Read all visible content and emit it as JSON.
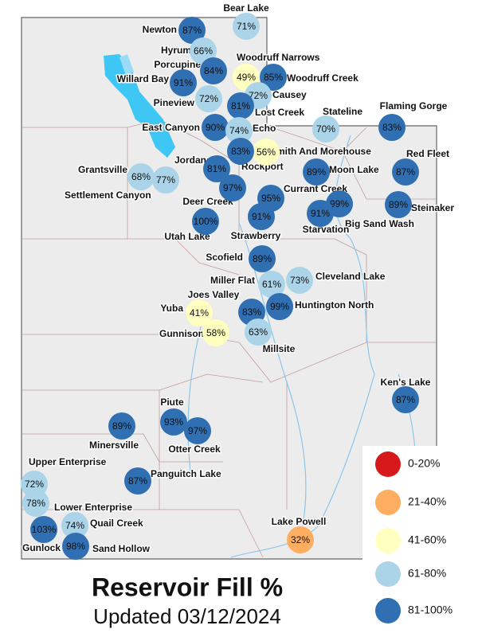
{
  "title": "Reservoir Fill %",
  "subtitle": "Updated 03/12/2024",
  "legend": [
    {
      "label": "0-20%",
      "range": [
        0,
        20
      ],
      "color": "#d7191c"
    },
    {
      "label": "21-40%",
      "range": [
        21,
        40
      ],
      "color": "#fdae61"
    },
    {
      "label": "41-60%",
      "range": [
        41,
        60
      ],
      "color": "#ffffbf"
    },
    {
      "label": "61-80%",
      "range": [
        61,
        80
      ],
      "color": "#abd4e8"
    },
    {
      "label": "81-100%",
      "range": [
        81,
        100
      ],
      "color": "#2f6fb2"
    }
  ],
  "reservoirs": [
    {
      "name": "Newton",
      "value": 87,
      "label": "87%"
    },
    {
      "name": "Bear Lake",
      "value": 71,
      "label": "71%"
    },
    {
      "name": "Hyrum",
      "value": 66,
      "label": "66%"
    },
    {
      "name": "Porcupine",
      "value": 84,
      "label": "84%"
    },
    {
      "name": "Woodruff Narrows",
      "value": 49,
      "label": "49%"
    },
    {
      "name": "Woodruff Creek",
      "value": 85,
      "label": "85%"
    },
    {
      "name": "Willard Bay",
      "value": 91,
      "label": "91%"
    },
    {
      "name": "Causey",
      "value": 72,
      "label": "72%"
    },
    {
      "name": "Pineview",
      "value": 72,
      "label": "72%"
    },
    {
      "name": "Lost Creek",
      "value": 81,
      "label": "81%"
    },
    {
      "name": "Stateline",
      "value": 70,
      "label": "70%"
    },
    {
      "name": "Flaming Gorge",
      "value": 83,
      "label": "83%"
    },
    {
      "name": "East Canyon",
      "value": 90,
      "label": "90%"
    },
    {
      "name": "Echo",
      "value": 74,
      "label": "74%"
    },
    {
      "name": "Smith And Morehouse",
      "value": 56,
      "label": "56%"
    },
    {
      "name": "Rockport",
      "value": 83,
      "label": "83%"
    },
    {
      "name": "Red Fleet",
      "value": 87,
      "label": "87%"
    },
    {
      "name": "Jordanelle",
      "value": 81,
      "label": "81%"
    },
    {
      "name": "Moon Lake",
      "value": 89,
      "label": "89%"
    },
    {
      "name": "Grantsville",
      "value": 68,
      "label": "68%"
    },
    {
      "name": "Settlement Canyon",
      "value": 77,
      "label": "77%"
    },
    {
      "name": "Currant Creek",
      "value": 95,
      "label": "95%"
    },
    {
      "name": "Deer Creek",
      "value": 97,
      "label": "97%"
    },
    {
      "name": "Steinaker",
      "value": 89,
      "label": "89%"
    },
    {
      "name": "Big Sand Wash",
      "value": 99,
      "label": "99%"
    },
    {
      "name": "Starvation",
      "value": 91,
      "label": "91%"
    },
    {
      "name": "Strawberry",
      "value": 91,
      "label": "91%"
    },
    {
      "name": "Utah Lake",
      "value": 100,
      "label": "100%"
    },
    {
      "name": "Scofield",
      "value": 89,
      "label": "89%"
    },
    {
      "name": "Miller Flat",
      "value": 61,
      "label": "61%"
    },
    {
      "name": "Cleveland Lake",
      "value": 73,
      "label": "73%"
    },
    {
      "name": "Joes Valley",
      "value": 83,
      "label": "83%"
    },
    {
      "name": "Huntington North",
      "value": 99,
      "label": "99%"
    },
    {
      "name": "Yuba",
      "value": 41,
      "label": "41%"
    },
    {
      "name": "Gunnison",
      "value": 58,
      "label": "58%"
    },
    {
      "name": "Millsite",
      "value": 63,
      "label": "63%"
    },
    {
      "name": "Ken's Lake",
      "value": 87,
      "label": "87%"
    },
    {
      "name": "Piute",
      "value": 93,
      "label": "93%"
    },
    {
      "name": "Minersville",
      "value": 89,
      "label": "89%"
    },
    {
      "name": "Otter Creek",
      "value": 97,
      "label": "97%"
    },
    {
      "name": "Upper Enterprise",
      "value": 72,
      "label": "72%"
    },
    {
      "name": "Panguitch Lake",
      "value": 87,
      "label": "87%"
    },
    {
      "name": "Lower Enterprise",
      "value": 78,
      "label": "78%"
    },
    {
      "name": "Quail Creek",
      "value": 74,
      "label": "74%"
    },
    {
      "name": "Gunlock",
      "value": 103,
      "label": "103%"
    },
    {
      "name": "Sand Hollow",
      "value": 98,
      "label": "98%"
    },
    {
      "name": "Lake Powell",
      "value": 32,
      "label": "32%"
    }
  ]
}
